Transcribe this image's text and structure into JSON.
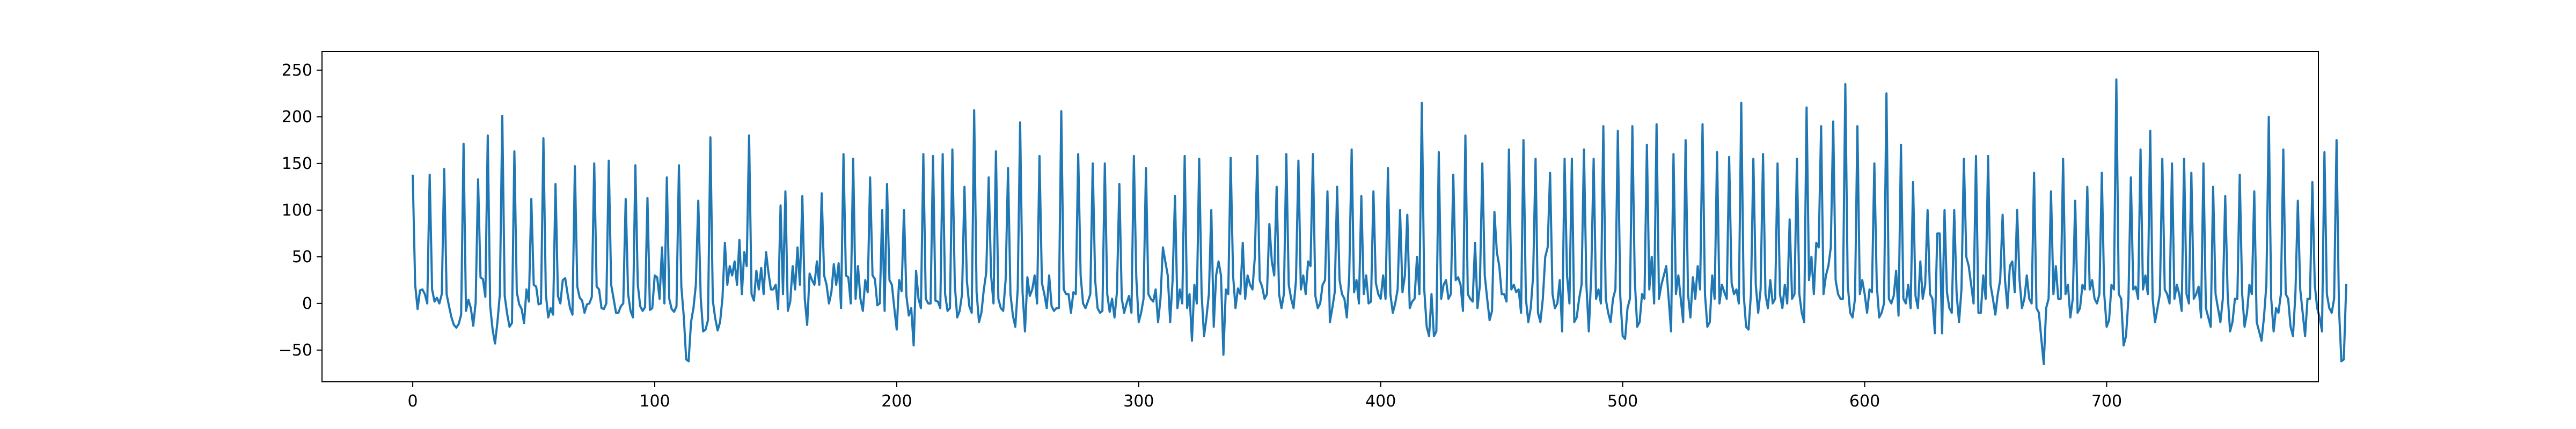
{
  "chart_data": {
    "type": "line",
    "title": "",
    "xlabel": "",
    "ylabel": "",
    "xlim": [
      -37.5,
      787.5
    ],
    "ylim": [
      -84,
      270
    ],
    "x_ticks": [
      0,
      100,
      200,
      300,
      400,
      500,
      600,
      700
    ],
    "y_ticks": [
      -50,
      0,
      50,
      100,
      150,
      200,
      250
    ],
    "x_tick_labels": [
      "0",
      "100",
      "200",
      "300",
      "400",
      "500",
      "600",
      "700"
    ],
    "y_tick_labels": [
      "−50",
      "0",
      "50",
      "100",
      "150",
      "200",
      "250"
    ],
    "grid": false,
    "legend": "none",
    "line_color": "#1f77b4",
    "series": [
      {
        "name": "",
        "x_start": 0,
        "x_step": 1,
        "values": [
          137,
          20,
          -6,
          14,
          15,
          10,
          0,
          138,
          15,
          2,
          6,
          0,
          10,
          144,
          10,
          -3,
          -15,
          -23,
          -26,
          -22,
          -12,
          171,
          -8,
          4,
          -5,
          -24,
          1,
          133,
          28,
          26,
          7,
          180,
          -3,
          -28,
          -43,
          -20,
          10,
          201,
          8,
          -11,
          -25,
          -21,
          163,
          12,
          -1,
          -6,
          -21,
          15,
          2,
          112,
          20,
          18,
          -1,
          0,
          177,
          10,
          -15,
          -5,
          -12,
          128,
          8,
          0,
          25,
          27,
          10,
          -5,
          -12,
          147,
          18,
          6,
          3,
          -10,
          -1,
          0,
          7,
          150,
          18,
          15,
          -5,
          -6,
          0,
          153,
          20,
          5,
          -10,
          -10,
          -3,
          0,
          112,
          10,
          -8,
          -15,
          148,
          20,
          -3,
          -8,
          -4,
          113,
          -7,
          -5,
          30,
          28,
          5,
          60,
          0,
          135,
          5,
          -6,
          -9,
          -3,
          148,
          18,
          -14,
          -60,
          -62,
          -20,
          -5,
          20,
          110,
          6,
          -30,
          -28,
          -18,
          178,
          3,
          -16,
          -29,
          -20,
          6,
          65,
          20,
          40,
          30,
          45,
          20,
          68,
          10,
          55,
          40,
          180,
          10,
          3,
          35,
          15,
          38,
          10,
          55,
          33,
          15,
          15,
          20,
          -6,
          105,
          10,
          120,
          -8,
          2,
          40,
          15,
          60,
          20,
          115,
          5,
          -23,
          32,
          25,
          20,
          45,
          20,
          118,
          30,
          20,
          0,
          12,
          42,
          20,
          43,
          -5,
          160,
          30,
          28,
          0,
          155,
          5,
          40,
          5,
          -8,
          25,
          12,
          135,
          30,
          26,
          -2,
          0,
          100,
          -8,
          128,
          25,
          20,
          -5,
          -28,
          25,
          13,
          100,
          8,
          -13,
          -5,
          -45,
          35,
          5,
          -5,
          160,
          5,
          0,
          0,
          158,
          3,
          2,
          -5,
          160,
          10,
          -8,
          -5,
          165,
          20,
          -15,
          -8,
          10,
          125,
          24,
          -3,
          -10,
          207,
          12,
          -20,
          -10,
          15,
          33,
          135,
          30,
          0,
          163,
          5,
          -5,
          -8,
          25,
          145,
          10,
          -13,
          -25,
          15,
          194,
          12,
          -30,
          28,
          8,
          15,
          30,
          0,
          158,
          22,
          10,
          -5,
          30,
          -3,
          -8,
          -5,
          -5,
          206,
          15,
          10,
          10,
          -10,
          12,
          10,
          160,
          30,
          0,
          -5,
          2,
          10,
          150,
          25,
          -5,
          -10,
          -8,
          150,
          10,
          -9,
          5,
          -15,
          12,
          128,
          5,
          -10,
          0,
          8,
          -10,
          158,
          28,
          -20,
          -10,
          5,
          145,
          10,
          5,
          2,
          15,
          -20,
          5,
          60,
          45,
          30,
          -20,
          25,
          115,
          -5,
          15,
          0,
          158,
          -5,
          10,
          -40,
          20,
          0,
          155,
          10,
          -35,
          -15,
          10,
          100,
          -25,
          30,
          45,
          30,
          -55,
          15,
          10,
          156,
          30,
          -5,
          16,
          10,
          65,
          5,
          30,
          20,
          15,
          50,
          158,
          25,
          18,
          5,
          10,
          85,
          45,
          30,
          125,
          10,
          -5,
          10,
          160,
          20,
          5,
          -5,
          25,
          153,
          15,
          30,
          10,
          45,
          40,
          160,
          8,
          -5,
          0,
          20,
          25,
          120,
          -20,
          -5,
          12,
          125,
          25,
          10,
          5,
          -15,
          30,
          165,
          12,
          25,
          0,
          115,
          10,
          30,
          0,
          2,
          120,
          22,
          10,
          5,
          30,
          5,
          145,
          10,
          -10,
          0,
          15,
          100,
          12,
          30,
          95,
          -5,
          2,
          5,
          50,
          10,
          215,
          15,
          -25,
          -35,
          10,
          -35,
          -30,
          162,
          5,
          20,
          25,
          5,
          10,
          138,
          25,
          28,
          20,
          -8,
          180,
          10,
          5,
          2,
          65,
          -5,
          20,
          150,
          30,
          5,
          -18,
          -8,
          98,
          55,
          40,
          10,
          10,
          2,
          165,
          15,
          20,
          12,
          15,
          -10,
          175,
          5,
          -20,
          -5,
          30,
          155,
          -10,
          -20,
          5,
          50,
          60,
          140,
          10,
          -5,
          0,
          25,
          -30,
          155,
          30,
          0,
          155,
          -20,
          -15,
          5,
          20,
          165,
          20,
          -30,
          30,
          155,
          5,
          15,
          0,
          190,
          5,
          -10,
          -20,
          5,
          15,
          185,
          8,
          -35,
          -38,
          -5,
          5,
          190,
          25,
          -25,
          -20,
          10,
          5,
          170,
          15,
          50,
          0,
          192,
          5,
          20,
          30,
          40,
          5,
          -30,
          160,
          10,
          30,
          5,
          -20,
          175,
          10,
          -15,
          28,
          5,
          40,
          15,
          192,
          10,
          -25,
          -20,
          30,
          5,
          162,
          0,
          20,
          12,
          5,
          157,
          22,
          10,
          15,
          0,
          215,
          10,
          -25,
          -28,
          10,
          155,
          20,
          -10,
          15,
          160,
          10,
          -5,
          25,
          0,
          5,
          150,
          10,
          -5,
          20,
          0,
          90,
          5,
          10,
          155,
          10,
          -10,
          -20,
          210,
          25,
          50,
          10,
          65,
          60,
          190,
          10,
          30,
          40,
          60,
          195,
          25,
          10,
          5,
          5,
          235,
          20,
          -10,
          -15,
          5,
          190,
          10,
          25,
          10,
          -10,
          15,
          12,
          150,
          20,
          -15,
          -10,
          0,
          225,
          5,
          0,
          8,
          35,
          -13,
          170,
          5,
          0,
          20,
          -5,
          130,
          8,
          -5,
          45,
          5,
          20,
          100,
          10,
          5,
          -32,
          75,
          75,
          -32,
          100,
          12,
          -5,
          -10,
          100,
          10,
          -20,
          15,
          155,
          50,
          40,
          20,
          0,
          158,
          -10,
          -10,
          30,
          5,
          158,
          20,
          5,
          -12,
          10,
          25,
          95,
          25,
          -5,
          40,
          45,
          12,
          100,
          25,
          -5,
          5,
          30,
          5,
          0,
          140,
          -5,
          -10,
          -38,
          -65,
          -5,
          5,
          120,
          10,
          40,
          5,
          5,
          155,
          10,
          20,
          -15,
          5,
          110,
          -10,
          -5,
          20,
          15,
          125,
          15,
          25,
          5,
          0,
          10,
          140,
          10,
          -25,
          -18,
          20,
          15,
          240,
          10,
          5,
          -45,
          -35,
          5,
          135,
          15,
          18,
          5,
          165,
          15,
          30,
          10,
          185,
          5,
          -20,
          -5,
          10,
          155,
          15,
          10,
          0,
          150,
          5,
          20,
          10,
          -8,
          155,
          10,
          0,
          140,
          5,
          10,
          18,
          -15,
          150,
          -5,
          -15,
          -25,
          125,
          10,
          -5,
          -20,
          5,
          115,
          10,
          -30,
          -20,
          5,
          5,
          138,
          10,
          -25,
          -10,
          20,
          10,
          120,
          -20,
          -30,
          -40,
          -15,
          20,
          200,
          5,
          -30,
          -5,
          -10,
          10,
          165,
          10,
          5,
          -25,
          -35,
          10,
          110,
          15,
          -10,
          -35,
          5,
          5,
          130,
          20,
          -5,
          -15,
          -30,
          162,
          10,
          -5,
          -10,
          5,
          175,
          -5,
          -62,
          -60,
          20
        ]
      }
    ]
  }
}
